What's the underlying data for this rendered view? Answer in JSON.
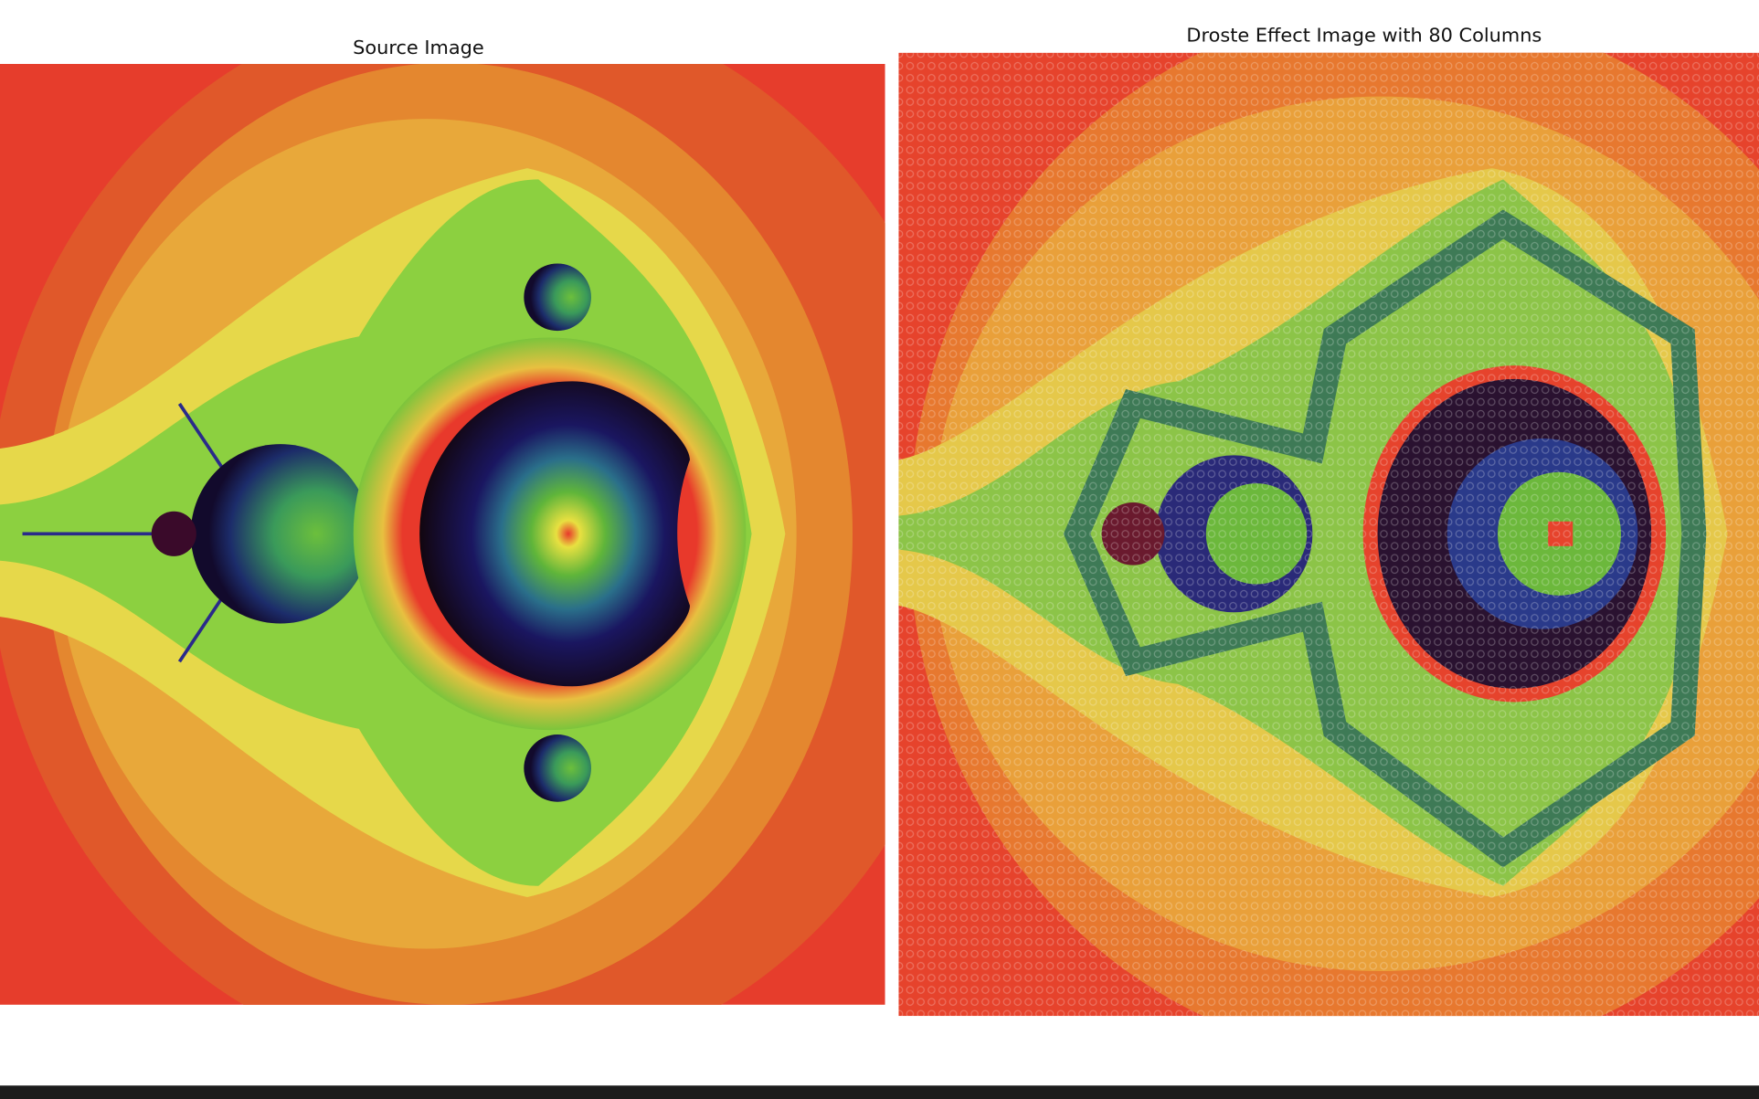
{
  "left_panel": {
    "title": "Source Image"
  },
  "right_panel": {
    "title": "Droste Effect Image with 80 Columns"
  }
}
